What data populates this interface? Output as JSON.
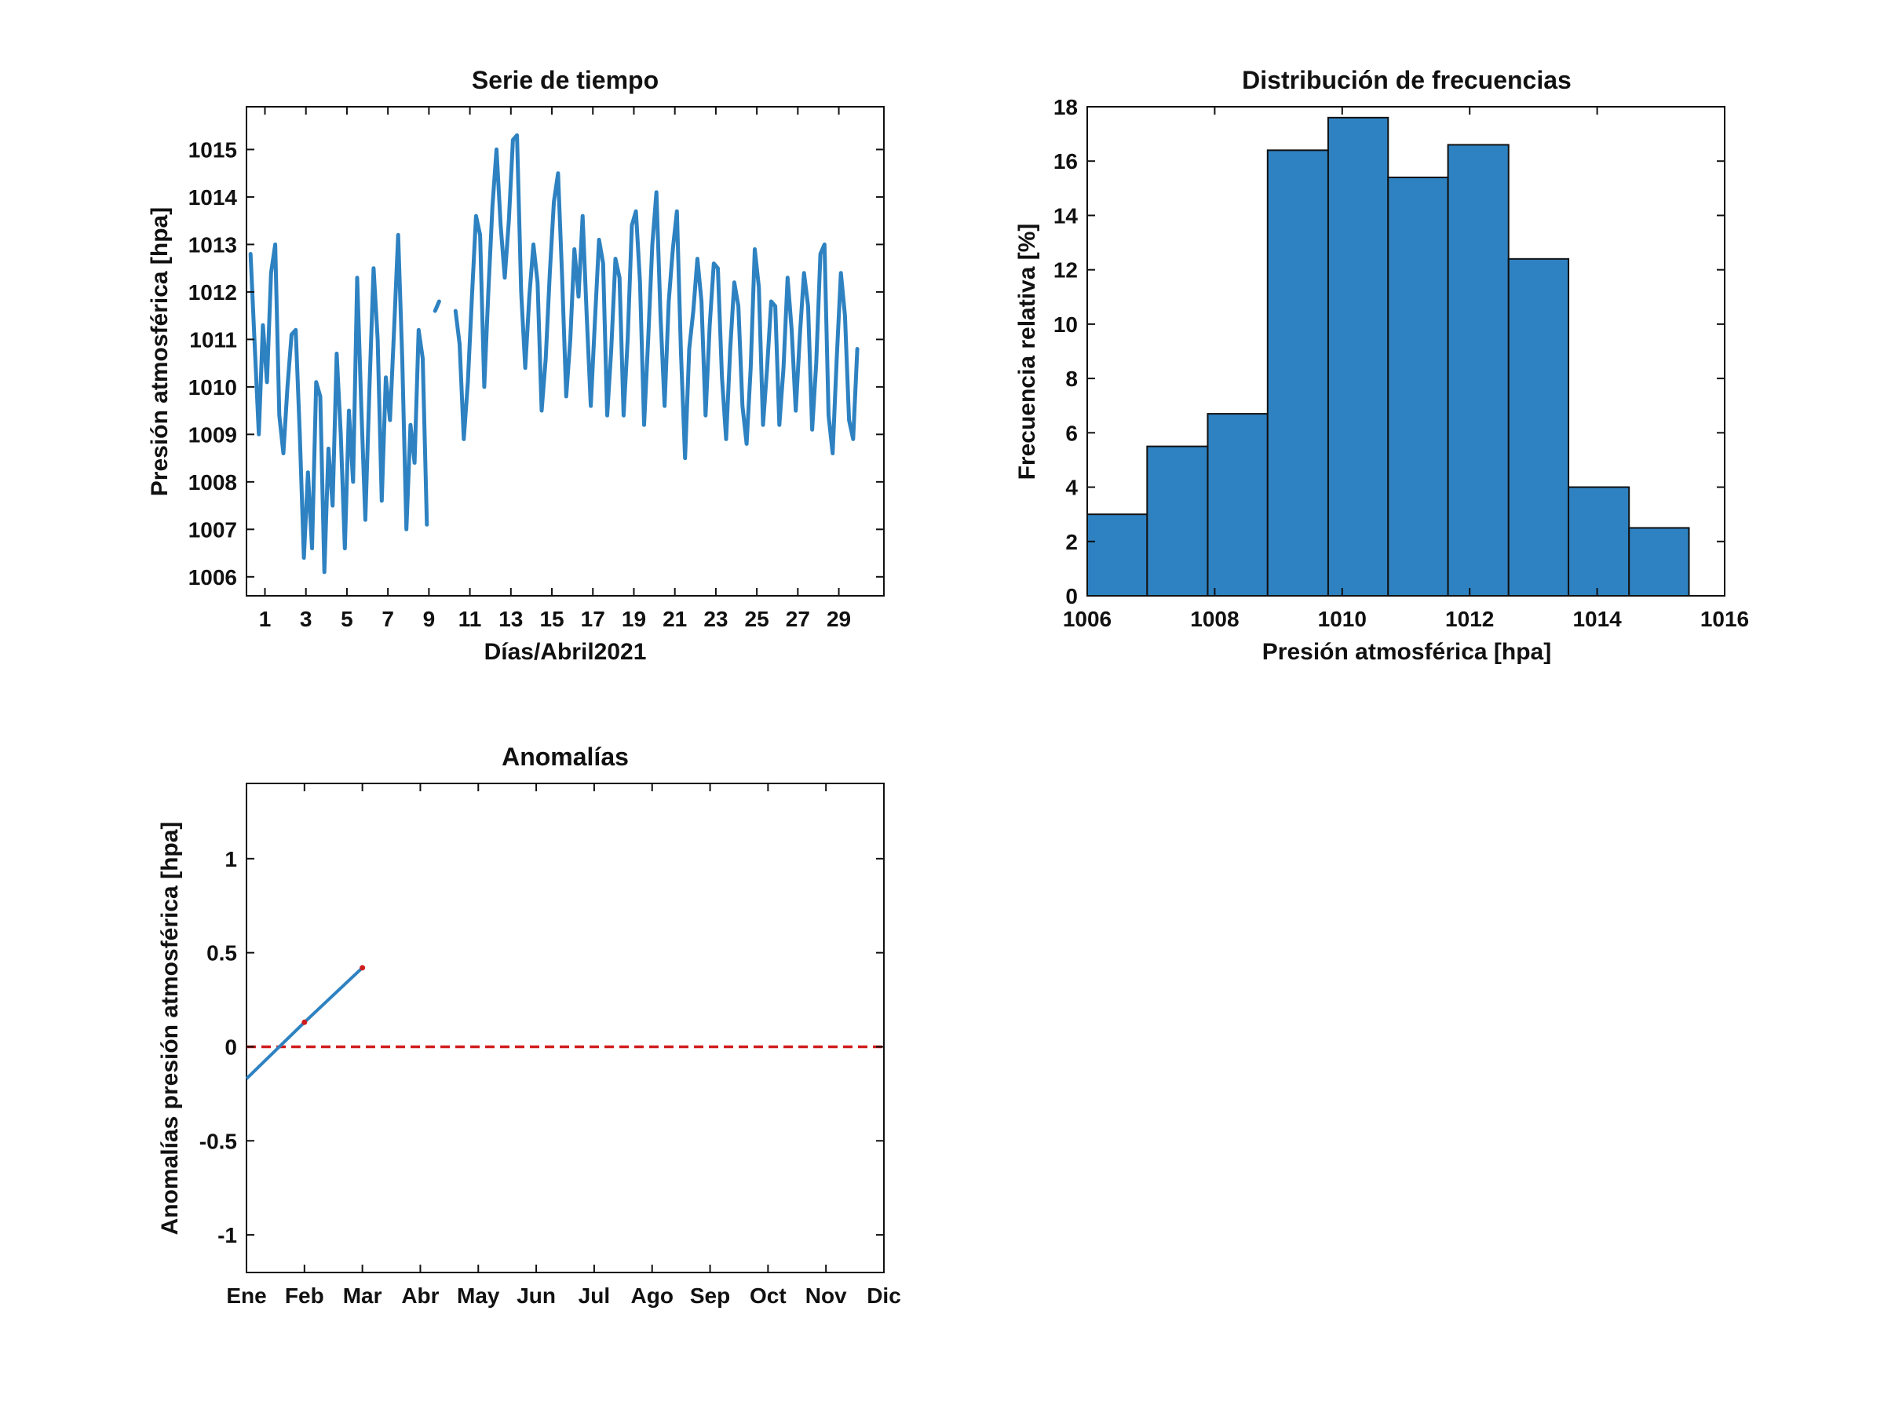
{
  "colors": {
    "series": "#2e82c1",
    "bar_fill": "#2e82c1",
    "bar_edge": "#111111",
    "reference": "#d01c1c",
    "marker": "#d01c1c"
  },
  "chart_data": [
    {
      "id": "timeseries",
      "type": "line",
      "title": "Serie de tiempo",
      "xlabel": "Días/Abril2021",
      "ylabel": "Presión atmosférica [hpa]",
      "xlim": [
        0.1,
        31.2
      ],
      "ylim": [
        1005.6,
        1015.9
      ],
      "xticks": [
        1,
        3,
        5,
        7,
        9,
        11,
        13,
        15,
        17,
        19,
        21,
        23,
        25,
        27,
        29
      ],
      "xticklabels": [
        "1",
        "3",
        "5",
        "7",
        "9",
        "11",
        "13",
        "15",
        "17",
        "19",
        "21",
        "23",
        "25",
        "27",
        "29"
      ],
      "yticks": [
        1006,
        1007,
        1008,
        1009,
        1010,
        1011,
        1012,
        1013,
        1014,
        1015
      ],
      "yticklabels": [
        "1006",
        "1007",
        "1008",
        "1009",
        "1010",
        "1011",
        "1012",
        "1013",
        "1014",
        "1015"
      ],
      "series": [
        {
          "name": "segment-1",
          "x": [
            0.3,
            0.5,
            0.7,
            0.9,
            1.1,
            1.3,
            1.5,
            1.7,
            1.9,
            2.1,
            2.3,
            2.5,
            2.7,
            2.9,
            3.1,
            3.3,
            3.5,
            3.7,
            3.9,
            4.1,
            4.3,
            4.5,
            4.7,
            4.9,
            5.1,
            5.3,
            5.5,
            5.7,
            5.9,
            6.1,
            6.3,
            6.5,
            6.7,
            6.9,
            7.1,
            7.3,
            7.5,
            7.7,
            7.9,
            8.1,
            8.3,
            8.5,
            8.7,
            8.9
          ],
          "y": [
            1012.8,
            1010.9,
            1009.0,
            1011.3,
            1010.1,
            1012.4,
            1013.0,
            1009.4,
            1008.6,
            1010.0,
            1011.1,
            1011.2,
            1009.0,
            1006.4,
            1008.2,
            1006.6,
            1010.1,
            1009.8,
            1006.1,
            1008.7,
            1007.5,
            1010.7,
            1009.0,
            1006.6,
            1009.5,
            1008.0,
            1012.3,
            1009.6,
            1007.2,
            1010.0,
            1012.5,
            1011.0,
            1007.6,
            1010.2,
            1009.3,
            1011.2,
            1013.2,
            1010.6,
            1007.0,
            1009.2,
            1008.4,
            1011.2,
            1010.6,
            1007.1
          ]
        },
        {
          "name": "segment-2",
          "x": [
            9.3,
            9.5
          ],
          "y": [
            1011.6,
            1011.8
          ]
        },
        {
          "name": "segment-3",
          "x": [
            10.3,
            10.5,
            10.7,
            10.9,
            11.1,
            11.3,
            11.5,
            11.7,
            11.9,
            12.1,
            12.3,
            12.5,
            12.7,
            12.9,
            13.1,
            13.3,
            13.5,
            13.7,
            13.9,
            14.1,
            14.3,
            14.5,
            14.7,
            14.9,
            15.1,
            15.3,
            15.5,
            15.7,
            15.9,
            16.1,
            16.3,
            16.5,
            16.7,
            16.9,
            17.1,
            17.3,
            17.5,
            17.7,
            17.9,
            18.1,
            18.3,
            18.5,
            18.7,
            18.9,
            19.1,
            19.3,
            19.5,
            19.7,
            19.9,
            20.1,
            20.3,
            20.5,
            20.7,
            20.9,
            21.1,
            21.3,
            21.5,
            21.7,
            21.9,
            22.1,
            22.3,
            22.5,
            22.7,
            22.9,
            23.1,
            23.3,
            23.5,
            23.7,
            23.9,
            24.1,
            24.3,
            24.5,
            24.7,
            24.9,
            25.1,
            25.3,
            25.5,
            25.7,
            25.9,
            26.1,
            26.3,
            26.5,
            26.7,
            26.9,
            27.1,
            27.3,
            27.5,
            27.7,
            27.9,
            28.1,
            28.3,
            28.5,
            28.7,
            28.9,
            29.1,
            29.3,
            29.5,
            29.7,
            29.9
          ],
          "y": [
            1011.6,
            1010.9,
            1008.9,
            1010.1,
            1011.9,
            1013.6,
            1013.2,
            1010.0,
            1012.0,
            1013.8,
            1015.0,
            1013.4,
            1012.3,
            1013.5,
            1015.2,
            1015.3,
            1012.0,
            1010.4,
            1011.9,
            1013.0,
            1012.2,
            1009.5,
            1010.6,
            1012.4,
            1013.9,
            1014.5,
            1012.3,
            1009.8,
            1011.0,
            1012.9,
            1011.9,
            1013.6,
            1011.5,
            1009.6,
            1011.4,
            1013.1,
            1012.6,
            1009.4,
            1010.8,
            1012.7,
            1012.3,
            1009.4,
            1011.0,
            1013.4,
            1013.7,
            1012.2,
            1009.2,
            1011.0,
            1013.0,
            1014.1,
            1011.5,
            1009.6,
            1011.8,
            1012.9,
            1013.7,
            1010.7,
            1008.5,
            1010.8,
            1011.6,
            1012.7,
            1011.8,
            1009.4,
            1011.3,
            1012.6,
            1012.5,
            1010.2,
            1008.9,
            1010.8,
            1012.2,
            1011.7,
            1009.6,
            1008.8,
            1010.4,
            1012.9,
            1012.1,
            1009.2,
            1010.4,
            1011.8,
            1011.7,
            1009.2,
            1010.4,
            1012.3,
            1011.2,
            1009.5,
            1011.1,
            1012.4,
            1011.7,
            1009.1,
            1010.5,
            1012.8,
            1013.0,
            1009.4,
            1008.6,
            1010.6,
            1012.4,
            1011.5,
            1009.3,
            1008.9,
            1010.8
          ]
        }
      ]
    },
    {
      "id": "histogram",
      "type": "bar",
      "title": "Distribución de frecuencias",
      "xlabel": "Presión atmosférica [hpa]",
      "ylabel": "Frecuencia relativa [%]",
      "xlim": [
        1006,
        1016
      ],
      "ylim": [
        0,
        18
      ],
      "xticks": [
        1006,
        1008,
        1010,
        1012,
        1014,
        1016
      ],
      "xticklabels": [
        "1006",
        "1008",
        "1010",
        "1012",
        "1014",
        "1016"
      ],
      "yticks": [
        0,
        2,
        4,
        6,
        8,
        10,
        12,
        14,
        16,
        18
      ],
      "yticklabels": [
        "0",
        "2",
        "4",
        "6",
        "8",
        "10",
        "12",
        "14",
        "16",
        "18"
      ],
      "bin_edges": [
        1006.0,
        1006.94,
        1007.89,
        1008.83,
        1009.78,
        1010.72,
        1011.66,
        1012.61,
        1013.55,
        1014.5,
        1015.44
      ],
      "values": [
        3.0,
        5.5,
        6.7,
        16.4,
        17.6,
        15.4,
        16.6,
        12.4,
        4.0,
        2.5
      ]
    },
    {
      "id": "anomalies",
      "type": "line",
      "title": "Anomalías",
      "xlabel": "",
      "ylabel": "Anomalías presión atmosférica [hpa]",
      "xlim": [
        1,
        12
      ],
      "ylim": [
        -1.2,
        1.4
      ],
      "xticks": [
        1,
        2,
        3,
        4,
        5,
        6,
        7,
        8,
        9,
        10,
        11,
        12
      ],
      "xticklabels": [
        "Ene",
        "Feb",
        "Mar",
        "Abr",
        "May",
        "Jun",
        "Jul",
        "Ago",
        "Sep",
        "Oct",
        "Nov",
        "Dic"
      ],
      "yticks": [
        1,
        0.5,
        0,
        -0.5,
        -1
      ],
      "yticklabels": [
        "1",
        "0.5",
        "0",
        "-0.5",
        "-1"
      ],
      "series": [
        {
          "name": "anomalia",
          "x": [
            1,
            2,
            3
          ],
          "y": [
            -0.17,
            0.13,
            0.42
          ]
        }
      ],
      "reference_line": {
        "y": 0,
        "style": "dashed"
      }
    }
  ]
}
